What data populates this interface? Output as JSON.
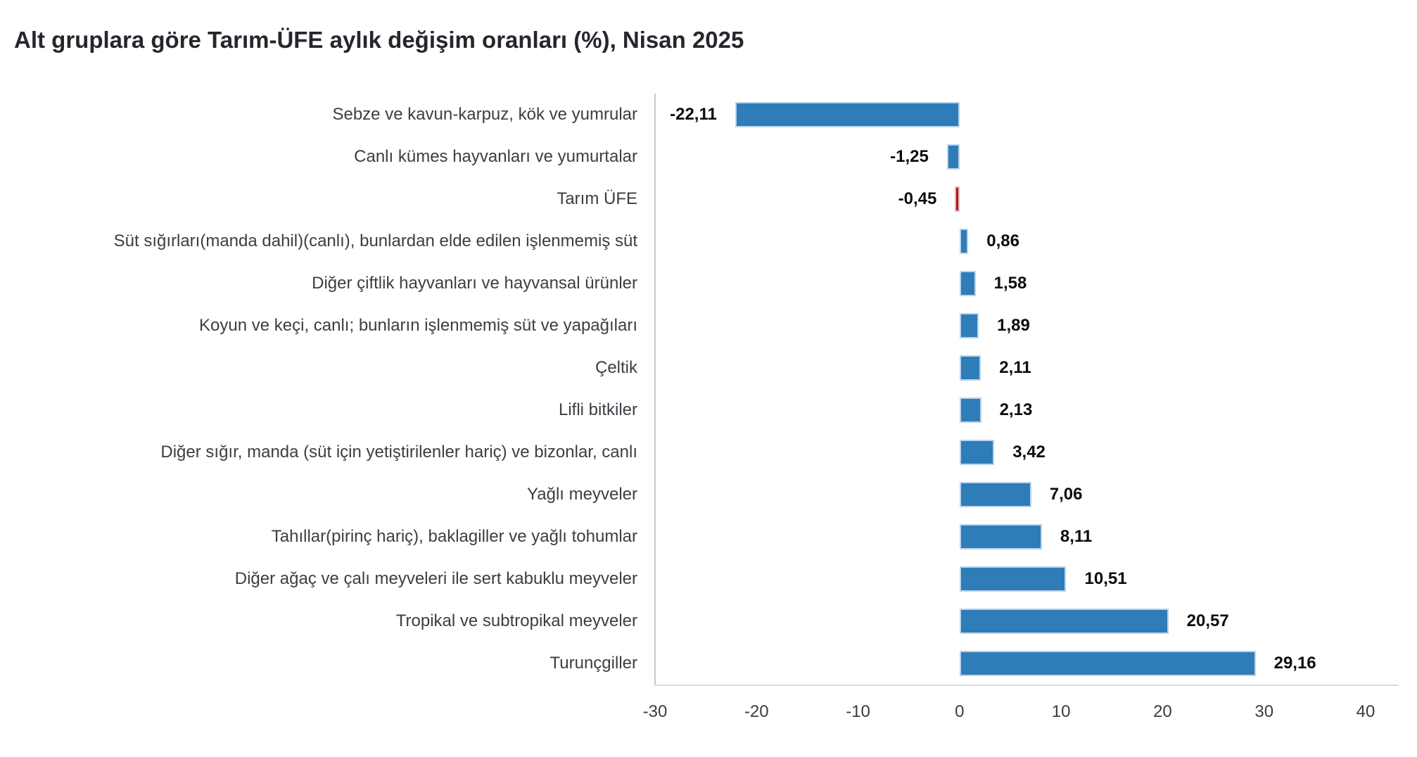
{
  "title": "Alt gruplara göre Tarım-ÜFE aylık değişim oranları (%), Nisan 2025",
  "chart_data": {
    "type": "bar",
    "orientation": "horizontal",
    "title": "Alt gruplara göre Tarım-ÜFE aylık değişim oranları (%), Nisan 2025",
    "xlabel": "",
    "ylabel": "",
    "xlim": [
      -30,
      40
    ],
    "grid": false,
    "legend": false,
    "categories": [
      "Sebze ve kavun-karpuz, kök ve yumrular",
      "Canlı kümes hayvanları ve yumurtalar",
      "Tarım ÜFE",
      "Süt sığırları(manda dahil)(canlı), bunlardan elde edilen işlenmemiş süt",
      "Diğer çiftlik hayvanları ve hayvansal ürünler",
      "Koyun ve keçi, canlı; bunların işlenmemiş süt ve yapağıları",
      "Çeltik",
      "Lifli bitkiler",
      "Diğer sığır, manda (süt için yetiştirilenler hariç) ve bizonlar, canlı",
      "Yağlı meyveler",
      "Tahıllar(pirinç hariç), baklagiller ve yağlı tohumlar",
      "Diğer ağaç ve çalı meyveleri ile sert kabuklu meyveler",
      "Tropikal ve subtropikal meyveler",
      "Turunçgiller"
    ],
    "values": [
      -22.11,
      -1.25,
      -0.45,
      0.86,
      1.58,
      1.89,
      2.11,
      2.13,
      3.42,
      7.06,
      8.11,
      10.51,
      20.57,
      29.16
    ],
    "value_labels": [
      "-22,11",
      "-1,25",
      "-0,45",
      "0,86",
      "1,58",
      "1,89",
      "2,11",
      "2,13",
      "3,42",
      "7,06",
      "8,11",
      "10,51",
      "20,57",
      "29,16"
    ],
    "highlight_index": 2,
    "highlight_category": "Tarım ÜFE",
    "bar_color": "#2e7cb8",
    "highlight_color": "#b0161f",
    "x_ticks": [
      -30,
      -20,
      -10,
      0,
      10,
      20,
      30,
      40
    ],
    "x_tick_labels": [
      "-30",
      "-20",
      "-10",
      "0",
      "10",
      "20",
      "30",
      "40"
    ]
  }
}
